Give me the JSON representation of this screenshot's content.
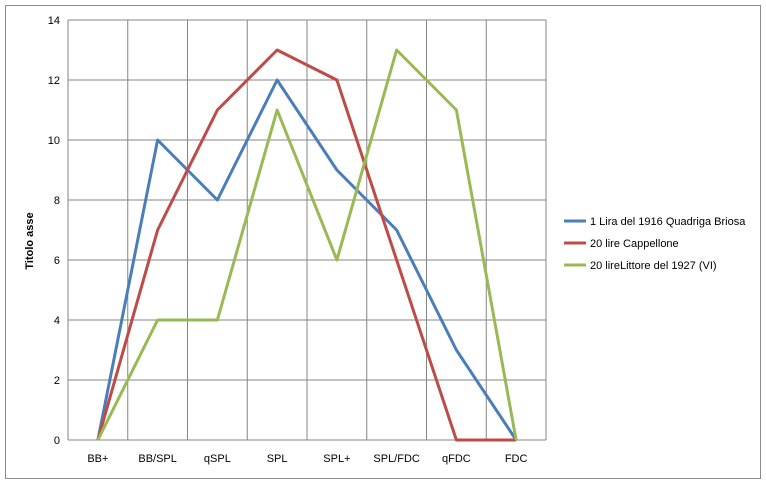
{
  "chart_data": {
    "type": "line",
    "title": "",
    "xlabel": "",
    "ylabel": "Titolo asse",
    "ylim": [
      0,
      14
    ],
    "yticks": [
      0,
      2,
      4,
      6,
      8,
      10,
      12,
      14
    ],
    "grid": true,
    "legend_position": "right",
    "categories": [
      "BB+",
      "BB/SPL",
      "qSPL",
      "SPL",
      "SPL+",
      "SPL/FDC",
      "qFDC",
      "FDC"
    ],
    "series": [
      {
        "name": "1 Lira del 1916 Quadriga Briosa",
        "color": "#4a7ebb",
        "values": [
          0,
          10,
          8,
          12,
          9,
          7,
          3,
          0
        ]
      },
      {
        "name": "20 lire Cappellone",
        "color": "#be4b48",
        "values": [
          0,
          7,
          11,
          13,
          12,
          6,
          0,
          0
        ]
      },
      {
        "name": "20 lireLittore del 1927 (VI)",
        "color": "#98b954",
        "values": [
          0,
          4,
          4,
          11,
          6,
          13,
          11,
          0
        ]
      }
    ]
  }
}
